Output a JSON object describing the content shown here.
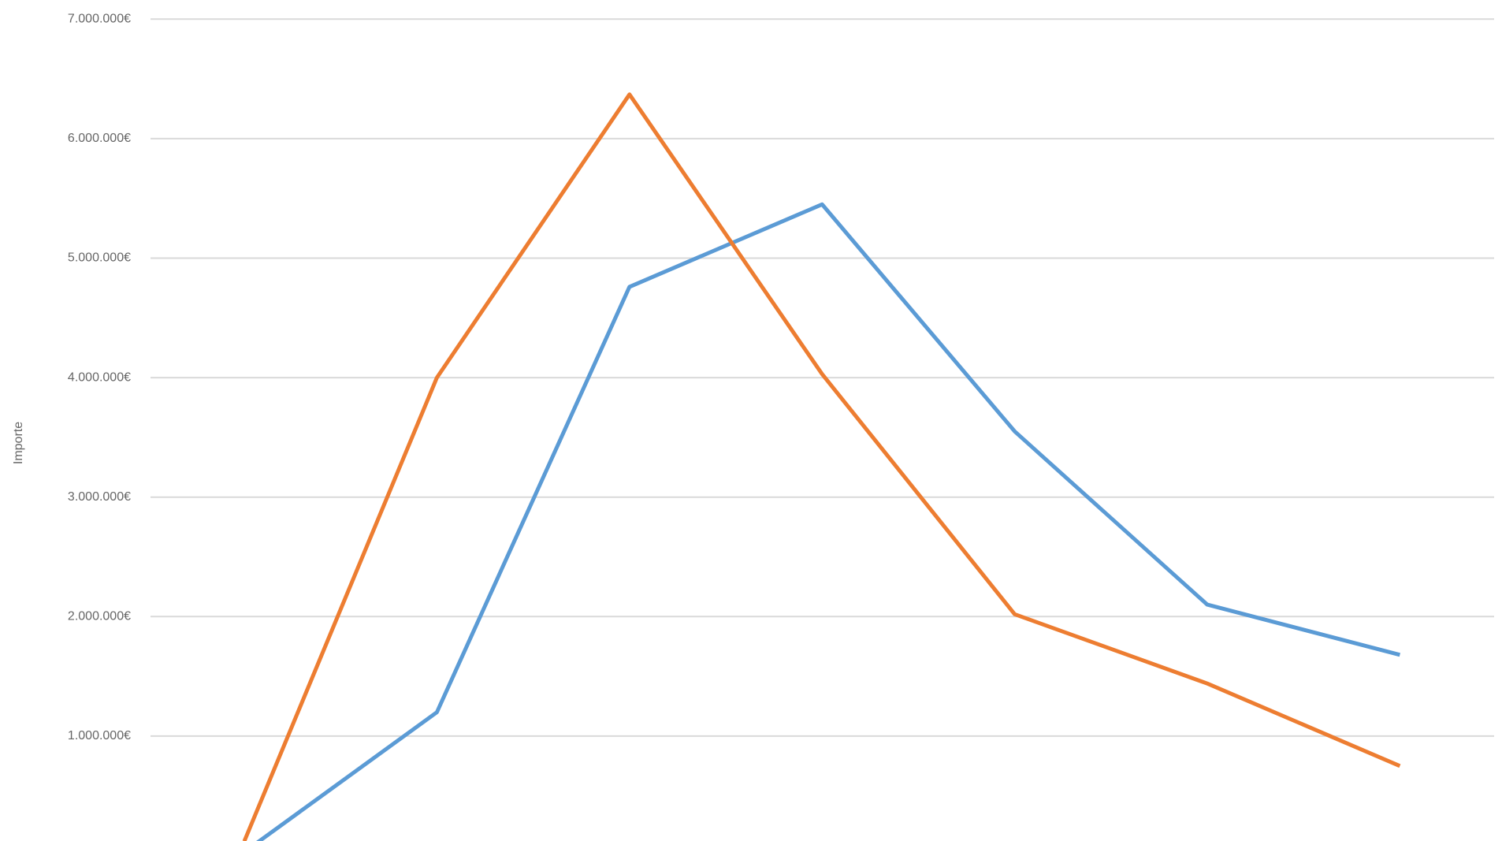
{
  "chart_data": {
    "type": "line",
    "y_label": "Importe",
    "categories": [
      null,
      null,
      null,
      null,
      null,
      null,
      null
    ],
    "series": [
      {
        "color": "#5b9bd5",
        "values": [
          30000,
          1200000,
          4760000,
          5450000,
          3550000,
          2100000,
          1680000
        ]
      },
      {
        "color": "#ed7d31",
        "values": [
          120000,
          4000000,
          6370000,
          4030000,
          2020000,
          1440000,
          750000
        ]
      }
    ],
    "ylim": [
      0,
      7000000
    ],
    "yticks": [
      {
        "value": 1000000,
        "label": "1.000.000€"
      },
      {
        "value": 2000000,
        "label": "2.000.000€"
      },
      {
        "value": 3000000,
        "label": "3.000.000€"
      },
      {
        "value": 4000000,
        "label": "4.000.000€"
      },
      {
        "value": 5000000,
        "label": "5.000.000€"
      },
      {
        "value": 6000000,
        "label": "6.000.000€"
      },
      {
        "value": 7000000,
        "label": "7.000.000€"
      }
    ],
    "grid": true
  }
}
